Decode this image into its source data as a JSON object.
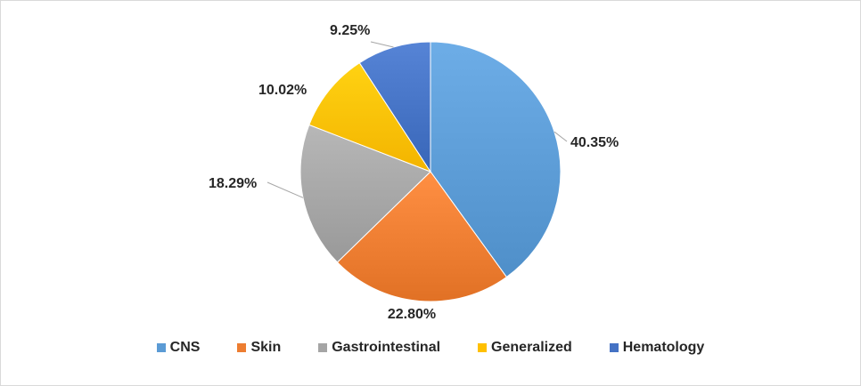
{
  "chart_data": {
    "type": "pie",
    "title": "",
    "categories": [
      "CNS",
      "Skin",
      "Gastrointestinal",
      "Generalized",
      "Hematology"
    ],
    "values": [
      40.35,
      22.8,
      18.29,
      10.02,
      9.25
    ],
    "data_labels": [
      "40.35%",
      "22.80%",
      "18.29%",
      "10.02%",
      "9.25%"
    ],
    "colors": [
      "#5b9bd5",
      "#ed7d31",
      "#a5a5a5",
      "#ffc000",
      "#4472c4"
    ],
    "legend_position": "bottom"
  },
  "legend": {
    "items": [
      {
        "label": "CNS",
        "color": "#5b9bd5"
      },
      {
        "label": "Skin",
        "color": "#ed7d31"
      },
      {
        "label": "Gastrointestinal",
        "color": "#a5a5a5"
      },
      {
        "label": "Generalized",
        "color": "#ffc000"
      },
      {
        "label": "Hematology",
        "color": "#4472c4"
      }
    ]
  }
}
